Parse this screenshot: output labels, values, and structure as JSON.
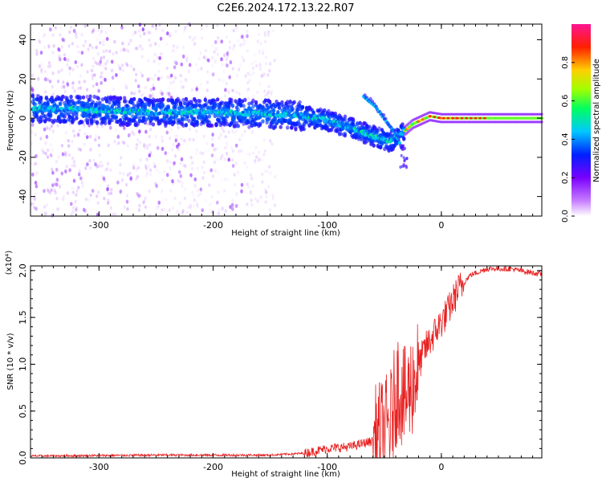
{
  "title": "C2E6.2024.172.13.22.R07",
  "chart_data": [
    {
      "type": "heatmap",
      "xlabel": "Height of straight line (km)",
      "ylabel": "Frequency (Hz)",
      "xlim": [
        -360,
        88
      ],
      "ylim": [
        -50,
        48
      ],
      "x_ticks": [
        -300,
        -200,
        -100,
        0
      ],
      "y_ticks": [
        -40,
        -20,
        0,
        20,
        40
      ],
      "colorbar": {
        "label": "Normalized spectral amplitude",
        "range": [
          0,
          1
        ],
        "ticks": [
          "0.0",
          "0.2",
          "0.4",
          "0.6",
          "0.8"
        ],
        "colors": [
          "#ffffff",
          "#c77dff",
          "#7a00ff",
          "#0020ff",
          "#00c8ff",
          "#00ff60",
          "#a0ff00",
          "#ffd000",
          "#ff2000",
          "#ff1493"
        ]
      },
      "ridge": [
        {
          "x": -350,
          "y": 5
        },
        {
          "x": -300,
          "y": 4
        },
        {
          "x": -250,
          "y": 3
        },
        {
          "x": -200,
          "y": 3
        },
        {
          "x": -150,
          "y": 2
        },
        {
          "x": -120,
          "y": 1
        },
        {
          "x": -100,
          "y": -1
        },
        {
          "x": -80,
          "y": -5
        },
        {
          "x": -60,
          "y": -9
        },
        {
          "x": -45,
          "y": -12
        },
        {
          "x": -35,
          "y": -8
        },
        {
          "x": -25,
          "y": -3
        },
        {
          "x": -10,
          "y": 1
        },
        {
          "x": 0,
          "y": 0
        },
        {
          "x": 40,
          "y": 0
        },
        {
          "x": 88,
          "y": 0
        }
      ],
      "branch": [
        {
          "x": -68,
          "y": 11
        },
        {
          "x": -58,
          "y": 6
        },
        {
          "x": -48,
          "y": -2
        },
        {
          "x": -40,
          "y": -8
        },
        {
          "x": -35,
          "y": -15
        }
      ]
    },
    {
      "type": "line",
      "xlabel": "Height of straight line (km)",
      "ylabel": "SNR (10 * v/v)",
      "y_multiplier": "(x10⁴)",
      "xlim": [
        -360,
        88
      ],
      "ylim": [
        0,
        2.05
      ],
      "x_ticks": [
        -300,
        -200,
        -100,
        0
      ],
      "y_ticks": [
        "0.0",
        "0.5",
        "1.0",
        "1.5",
        "2.0"
      ],
      "color": "#e82020",
      "trend": [
        {
          "x": -360,
          "y": 0.02
        },
        {
          "x": -250,
          "y": 0.03
        },
        {
          "x": -150,
          "y": 0.03
        },
        {
          "x": -120,
          "y": 0.05
        },
        {
          "x": -100,
          "y": 0.1
        },
        {
          "x": -80,
          "y": 0.12
        },
        {
          "x": -60,
          "y": 0.18
        },
        {
          "x": -45,
          "y": 0.35
        },
        {
          "x": -38,
          "y": 0.8
        },
        {
          "x": -32,
          "y": 0.6
        },
        {
          "x": -22,
          "y": 0.9
        },
        {
          "x": -15,
          "y": 1.15
        },
        {
          "x": -5,
          "y": 1.35
        },
        {
          "x": 5,
          "y": 1.55
        },
        {
          "x": 15,
          "y": 1.8
        },
        {
          "x": 25,
          "y": 1.95
        },
        {
          "x": 40,
          "y": 2.02
        },
        {
          "x": 60,
          "y": 2.02
        },
        {
          "x": 88,
          "y": 1.96
        }
      ]
    }
  ]
}
